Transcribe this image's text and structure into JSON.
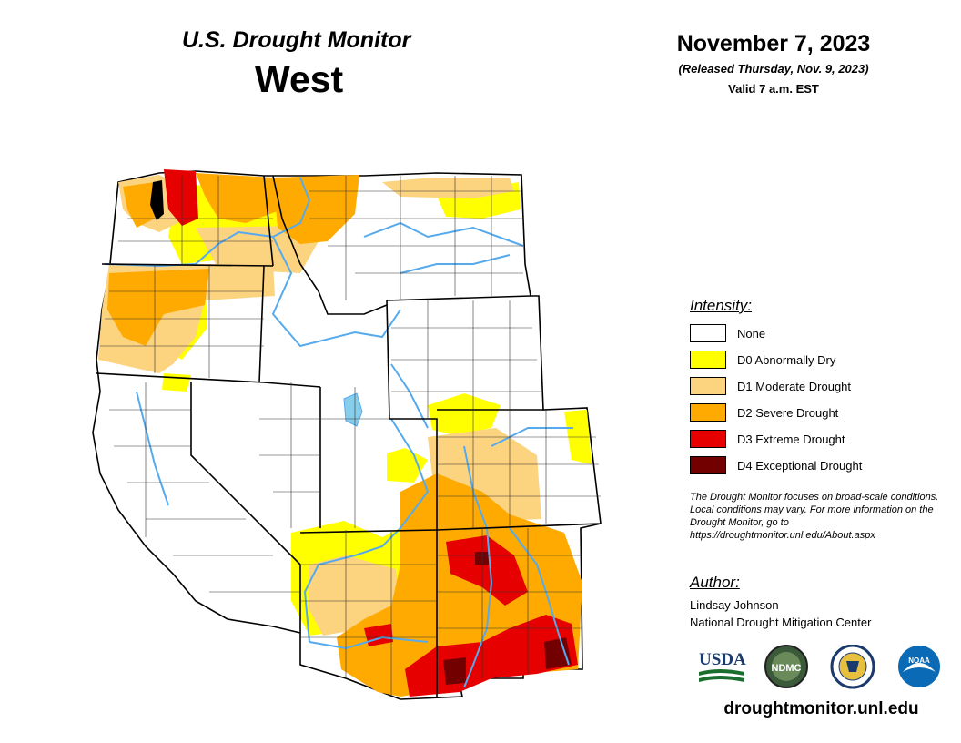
{
  "header": {
    "title": "U.S. Drought Monitor",
    "region": "West",
    "date": "November 7, 2023",
    "release_note": "(Released Thursday, Nov. 9, 2023)",
    "valid_time": "Valid 7 a.m. EST"
  },
  "legend": {
    "title": "Intensity:",
    "items": [
      {
        "label": "None",
        "color": "#ffffff"
      },
      {
        "label": "D0 Abnormally Dry",
        "color": "#ffff00"
      },
      {
        "label": "D1 Moderate Drought",
        "color": "#fcd37f"
      },
      {
        "label": "D2 Severe Drought",
        "color": "#ffaa00"
      },
      {
        "label": "D3 Extreme Drought",
        "color": "#e60000"
      },
      {
        "label": "D4 Exceptional Drought",
        "color": "#730000"
      }
    ]
  },
  "disclaimer": "The Drought Monitor focuses on broad-scale conditions. Local conditions may vary. For more information on the Drought Monitor, go to https://droughtmonitor.unl.edu/About.aspx",
  "author": {
    "title": "Author:",
    "name": "Lindsay Johnson",
    "organization": "National Drought Mitigation Center"
  },
  "logos": {
    "usda": "USDA",
    "ndmc": "NDMC",
    "noaa": "NOAA"
  },
  "website": "droughtmonitor.unl.edu",
  "colors": {
    "water": "#55aaee",
    "boundary": "#000000",
    "county": "#333333"
  }
}
